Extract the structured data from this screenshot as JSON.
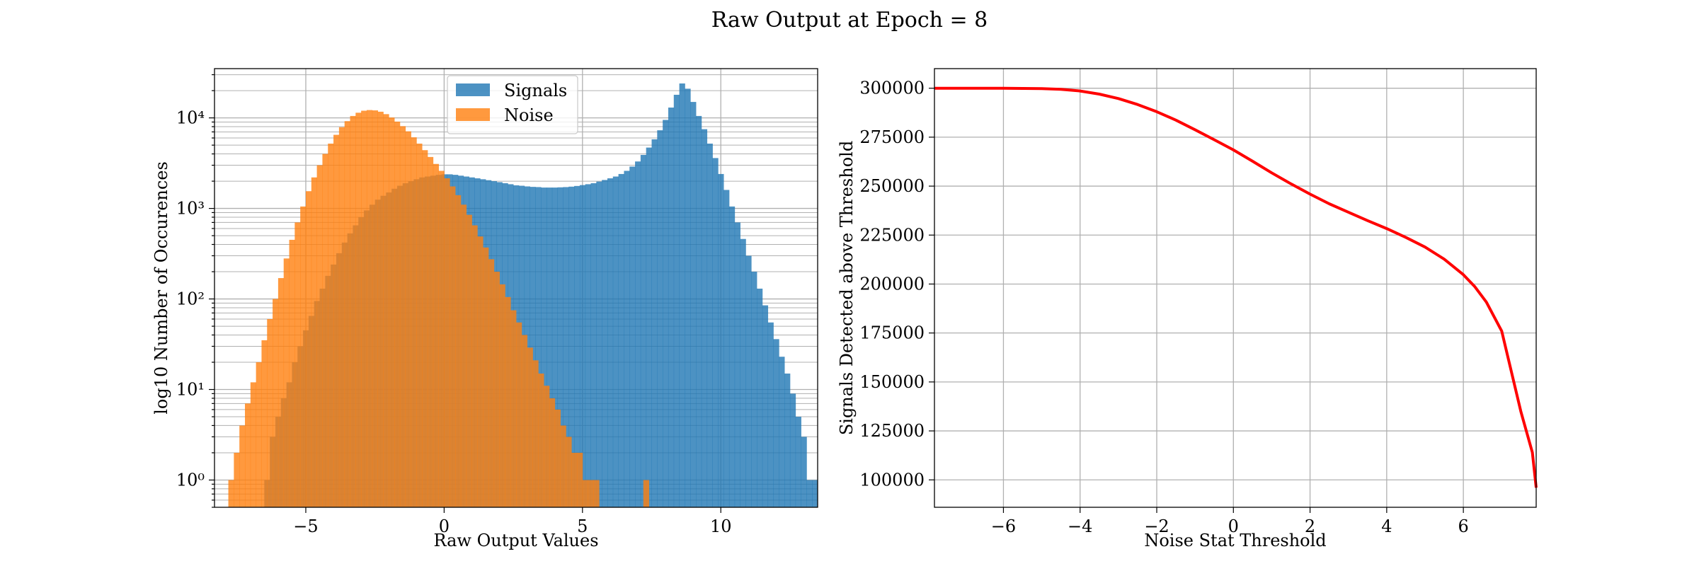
{
  "figure_title": "Raw Output at Epoch = 8",
  "colors": {
    "signals": "#1f77b4",
    "noise": "#ff7f0e",
    "curve": "#ff0000",
    "grid": "#b0b0b0"
  },
  "chart_data": [
    {
      "type": "histogram",
      "title": "",
      "xlabel": "Raw Output Values",
      "ylabel": "log10 Number of Occurences",
      "yscale": "log",
      "xlim": [
        -8.3,
        13.5
      ],
      "ylim": [
        0.5,
        35000
      ],
      "xticks": [
        -5,
        0,
        5,
        10
      ],
      "xtick_labels": [
        "−5",
        "0",
        "5",
        "10"
      ],
      "yticks": [
        1,
        10,
        100,
        1000,
        10000
      ],
      "ytick_labels": [
        "10⁰",
        "10¹",
        "10²",
        "10³",
        "10⁴"
      ],
      "grid": true,
      "legend": {
        "placement": "upper center",
        "entries": [
          "Signals",
          "Noise"
        ]
      },
      "series": [
        {
          "name": "Signals",
          "bin_start": -6.5,
          "bin_width": 0.2,
          "counts": [
            1,
            3,
            5,
            8,
            12,
            20,
            30,
            45,
            65,
            95,
            130,
            180,
            240,
            320,
            420,
            530,
            650,
            800,
            950,
            1100,
            1250,
            1380,
            1500,
            1650,
            1780,
            1900,
            2000,
            2100,
            2200,
            2250,
            2300,
            2350,
            2380,
            2380,
            2350,
            2300,
            2250,
            2200,
            2150,
            2100,
            2050,
            2000,
            1950,
            1900,
            1850,
            1800,
            1780,
            1750,
            1730,
            1720,
            1700,
            1700,
            1700,
            1710,
            1720,
            1740,
            1770,
            1810,
            1850,
            1900,
            1980,
            2060,
            2150,
            2250,
            2400,
            2600,
            2900,
            3300,
            3900,
            4700,
            5800,
            7300,
            9500,
            13000,
            18000,
            24000,
            21000,
            15000,
            10500,
            7500,
            5200,
            3600,
            2400,
            1600,
            1050,
            700,
            460,
            300,
            200,
            130,
            85,
            55,
            36,
            23,
            15,
            9,
            5,
            3,
            1,
            1
          ],
          "color": "#1f77b4"
        },
        {
          "name": "Noise",
          "bin_start": -7.8,
          "bin_width": 0.2,
          "counts": [
            1,
            2,
            4,
            7,
            12,
            20,
            35,
            60,
            100,
            170,
            280,
            450,
            700,
            1050,
            1550,
            2200,
            3000,
            4000,
            5200,
            6500,
            7900,
            9200,
            10500,
            11400,
            12000,
            12200,
            12100,
            11700,
            11000,
            10100,
            9100,
            8100,
            7100,
            6100,
            5200,
            4400,
            3700,
            3100,
            2600,
            2150,
            1750,
            1400,
            1100,
            850,
            650,
            490,
            370,
            275,
            200,
            145,
            105,
            75,
            55,
            40,
            29,
            21,
            15,
            11,
            8,
            6,
            4,
            3,
            2,
            2,
            1,
            1,
            1,
            0,
            0,
            0,
            0,
            0,
            0,
            0,
            0,
            1,
            0,
            0,
            0
          ],
          "color": "#ff7f0e"
        }
      ]
    },
    {
      "type": "line",
      "title": "",
      "xlabel": "Noise Stat Threshold",
      "ylabel": "Signals Detected above Threshold",
      "xlim": [
        -7.8,
        7.9
      ],
      "ylim": [
        86000,
        310000
      ],
      "xticks": [
        -6,
        -4,
        -2,
        0,
        2,
        4,
        6
      ],
      "xtick_labels": [
        "−6",
        "−4",
        "−2",
        "0",
        "2",
        "4",
        "6"
      ],
      "yticks": [
        100000,
        125000,
        150000,
        175000,
        200000,
        225000,
        250000,
        275000,
        300000
      ],
      "ytick_labels": [
        "100000",
        "125000",
        "150000",
        "175000",
        "200000",
        "225000",
        "250000",
        "275000",
        "300000"
      ],
      "grid": true,
      "series": [
        {
          "name": "",
          "x": [
            -7.8,
            -6,
            -5,
            -4.5,
            -4,
            -3.5,
            -3,
            -2.5,
            -2,
            -1.5,
            -1,
            -0.5,
            0,
            0.5,
            1,
            1.5,
            2,
            2.5,
            3,
            3.5,
            4,
            4.5,
            5,
            5.5,
            6,
            6.3,
            6.6,
            7.0,
            7.5,
            7.8,
            7.9
          ],
          "y": [
            300000,
            300000,
            299800,
            299400,
            298600,
            297000,
            294700,
            291700,
            288000,
            283700,
            278800,
            273700,
            268500,
            262700,
            256800,
            251200,
            245900,
            241000,
            236700,
            232400,
            228300,
            223800,
            218900,
            212700,
            204800,
            198600,
            190800,
            176000,
            135000,
            114000,
            96000
          ],
          "color": "#ff0000"
        }
      ]
    }
  ]
}
